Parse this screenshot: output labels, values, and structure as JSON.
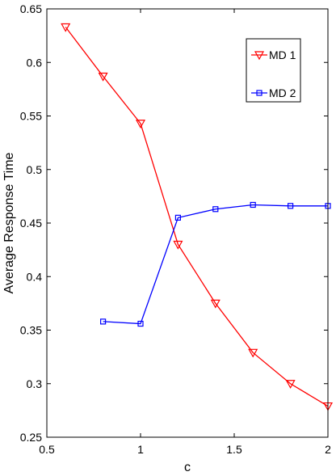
{
  "chart_data": {
    "type": "line",
    "xlabel": "c",
    "ylabel": "Average Response Time",
    "xlim": [
      0.5,
      2
    ],
    "ylim": [
      0.25,
      0.65
    ],
    "xticks": [
      0.5,
      1,
      1.5,
      2
    ],
    "xtick_labels": [
      "0.5",
      "1",
      "1.5",
      "2"
    ],
    "yticks": [
      0.25,
      0.3,
      0.35,
      0.4,
      0.45,
      0.5,
      0.55,
      0.6,
      0.65
    ],
    "ytick_labels": [
      "0.25",
      "0.3",
      "0.35",
      "0.4",
      "0.45",
      "0.5",
      "0.55",
      "0.6",
      "0.65"
    ],
    "grid": false,
    "legend_position": "top-right",
    "series": [
      {
        "name": "MD 1",
        "color": "#ff0000",
        "marker": "triangle-down",
        "x": [
          0.6,
          0.8,
          1.0,
          1.2,
          1.4,
          1.6,
          1.8,
          2.0
        ],
        "values": [
          0.633,
          0.587,
          0.543,
          0.43,
          0.375,
          0.329,
          0.3,
          0.279
        ]
      },
      {
        "name": "MD 2",
        "color": "#0000ff",
        "marker": "square",
        "x": [
          0.8,
          1.0,
          1.2,
          1.4,
          1.6,
          1.8,
          2.0
        ],
        "values": [
          0.358,
          0.356,
          0.455,
          0.463,
          0.467,
          0.466,
          0.466
        ]
      }
    ]
  }
}
